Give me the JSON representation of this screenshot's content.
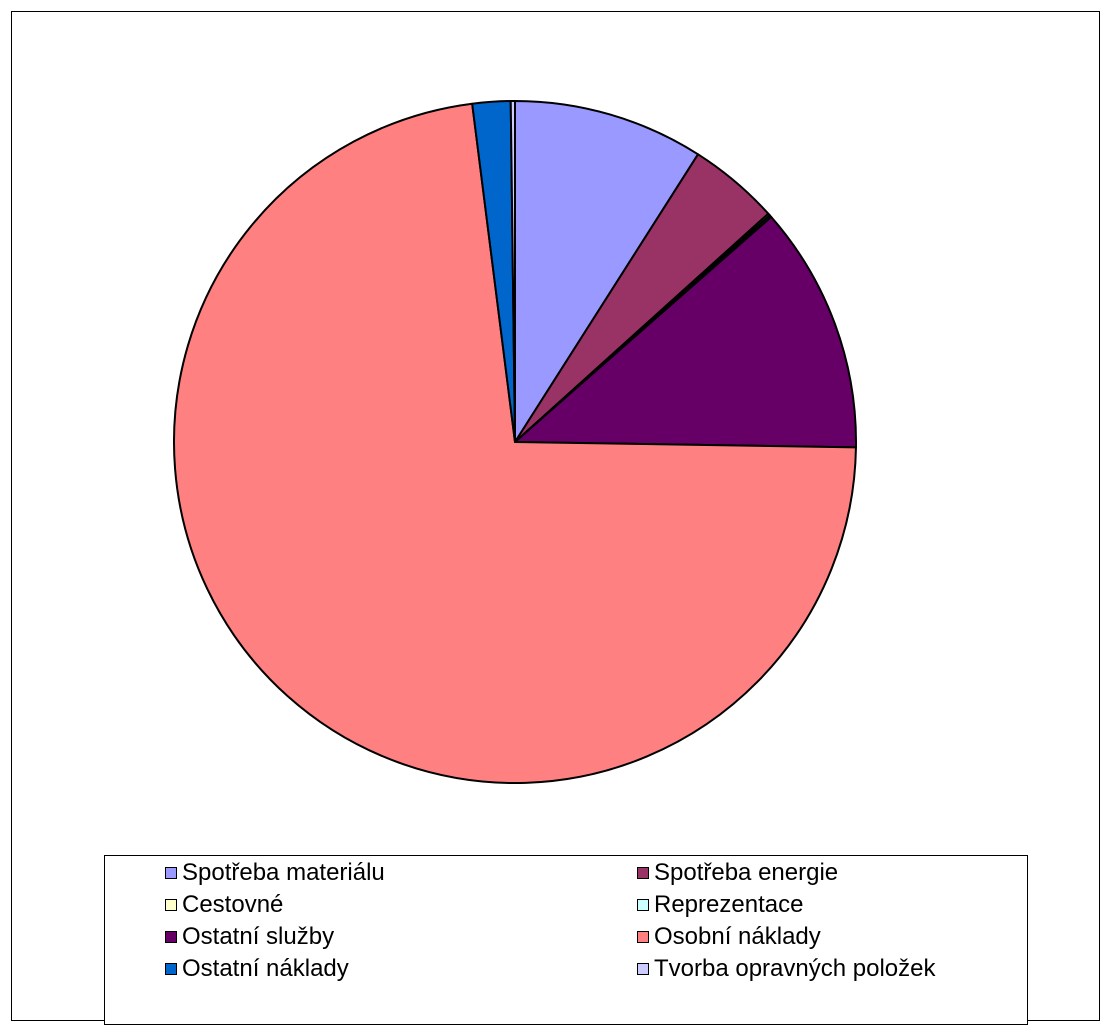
{
  "chart_data": {
    "type": "pie",
    "title": "",
    "legend_position": "bottom",
    "slices": [
      {
        "label": "Spotřeba materiálu",
        "value": 9.0,
        "color": "#9999ff"
      },
      {
        "label": "Spotřeba energie",
        "value": 4.3,
        "color": "#993366"
      },
      {
        "label": "Cestovné",
        "value": 0.1,
        "color": "#ffffcc"
      },
      {
        "label": "Reprezentace",
        "value": 0.1,
        "color": "#ccffff"
      },
      {
        "label": "Ostatní služby",
        "value": 11.7,
        "color": "#660066"
      },
      {
        "label": "Osobní náklady",
        "value": 72.6,
        "color": "#ff8080"
      },
      {
        "label": "Ostatní náklady",
        "value": 1.8,
        "color": "#0066cc"
      },
      {
        "label": "Tvorba opravných položek",
        "value": 0.2,
        "color": "#ccccff"
      }
    ]
  }
}
